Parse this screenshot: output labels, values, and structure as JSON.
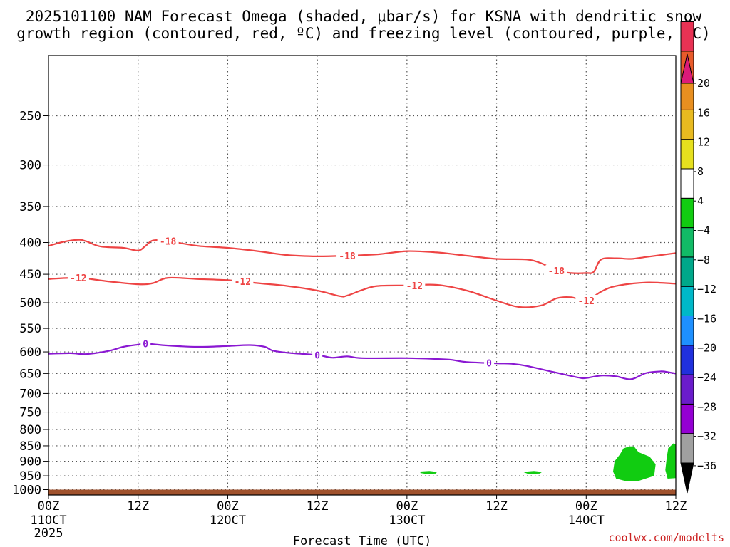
{
  "chart_data": {
    "type": "time-height",
    "title_lines": [
      "2025101100 NAM Forecast Omega (shaded, μbar/s) for KSNA with dendritic snow",
      "growth region (contoured, red, ºC) and freezing level (contoured, purple, ºC)"
    ],
    "xlabel": "Forecast Time (UTC)",
    "credit": "coolwx.com/modelts",
    "x_range_hours": [
      0,
      84
    ],
    "y_range_hpa": [
      1020,
      200
    ],
    "x_ticks": [
      {
        "hour": 0,
        "top": "00Z",
        "mid": "11OCT",
        "bottom": "2025"
      },
      {
        "hour": 12,
        "top": "12Z",
        "mid": "",
        "bottom": ""
      },
      {
        "hour": 24,
        "top": "00Z",
        "mid": "12OCT",
        "bottom": ""
      },
      {
        "hour": 36,
        "top": "12Z",
        "mid": "",
        "bottom": ""
      },
      {
        "hour": 48,
        "top": "00Z",
        "mid": "13OCT",
        "bottom": ""
      },
      {
        "hour": 60,
        "top": "12Z",
        "mid": "",
        "bottom": ""
      },
      {
        "hour": 72,
        "top": "00Z",
        "mid": "14OCT",
        "bottom": ""
      },
      {
        "hour": 84,
        "top": "12Z",
        "mid": "",
        "bottom": ""
      }
    ],
    "y_ticks": [
      {
        "p": 250,
        "label": "250"
      },
      {
        "p": 300,
        "label": "300"
      },
      {
        "p": 350,
        "label": "350"
      },
      {
        "p": 400,
        "label": "400"
      },
      {
        "p": 450,
        "label": "450"
      },
      {
        "p": 500,
        "label": "500"
      },
      {
        "p": 550,
        "label": "550"
      },
      {
        "p": 600,
        "label": "600"
      },
      {
        "p": 650,
        "label": "650"
      },
      {
        "p": 700,
        "label": "700"
      },
      {
        "p": 750,
        "label": "750"
      },
      {
        "p": 800,
        "label": "800"
      },
      {
        "p": 850,
        "label": "850"
      },
      {
        "p": 900,
        "label": "900"
      },
      {
        "p": 950,
        "label": "950"
      },
      {
        "p": 1000,
        "label": "1000"
      }
    ],
    "contours": [
      {
        "name": "minus18",
        "label": "-18",
        "color": "#ee4444",
        "points": [
          [
            0,
            405
          ],
          [
            2,
            399
          ],
          [
            4,
            396
          ],
          [
            5,
            398
          ],
          [
            7,
            406
          ],
          [
            10,
            408
          ],
          [
            12,
            412
          ],
          [
            13,
            405
          ],
          [
            14,
            397
          ],
          [
            16,
            398
          ],
          [
            20,
            405
          ],
          [
            24,
            408
          ],
          [
            28,
            413
          ],
          [
            32,
            419
          ],
          [
            36,
            421
          ],
          [
            40,
            420
          ],
          [
            44,
            418
          ],
          [
            48,
            413
          ],
          [
            52,
            415
          ],
          [
            56,
            420
          ],
          [
            60,
            425
          ],
          [
            64,
            426
          ],
          [
            66,
            432
          ],
          [
            68,
            444
          ],
          [
            70,
            448
          ],
          [
            72,
            448
          ],
          [
            73,
            446
          ],
          [
            74,
            426
          ],
          [
            76,
            424
          ],
          [
            78,
            425
          ],
          [
            80,
            422
          ],
          [
            82,
            419
          ],
          [
            84,
            416
          ]
        ],
        "label_positions": [
          [
            16,
            398
          ],
          [
            40,
            420
          ],
          [
            68,
            444
          ]
        ]
      },
      {
        "name": "minus12",
        "label": "-12",
        "color": "#ee4444",
        "points": [
          [
            0,
            458
          ],
          [
            4,
            456
          ],
          [
            8,
            462
          ],
          [
            12,
            467
          ],
          [
            14,
            465
          ],
          [
            16,
            456
          ],
          [
            20,
            458
          ],
          [
            24,
            460
          ],
          [
            28,
            465
          ],
          [
            32,
            470
          ],
          [
            36,
            478
          ],
          [
            39,
            488
          ],
          [
            40,
            487
          ],
          [
            42,
            477
          ],
          [
            44,
            470
          ],
          [
            48,
            469
          ],
          [
            52,
            468
          ],
          [
            56,
            478
          ],
          [
            60,
            496
          ],
          [
            63,
            508
          ],
          [
            66,
            505
          ],
          [
            68,
            492
          ],
          [
            70,
            490
          ],
          [
            72,
            496
          ],
          [
            74,
            480
          ],
          [
            76,
            470
          ],
          [
            80,
            464
          ],
          [
            84,
            466
          ]
        ],
        "label_positions": [
          [
            4,
            456
          ],
          [
            26,
            462
          ],
          [
            49,
            469
          ],
          [
            72,
            496
          ]
        ]
      },
      {
        "name": "zero",
        "label": "0",
        "color": "#8a18d2",
        "points": [
          [
            0,
            604
          ],
          [
            3,
            603
          ],
          [
            5,
            605
          ],
          [
            8,
            598
          ],
          [
            10,
            589
          ],
          [
            12,
            584
          ],
          [
            13,
            582
          ],
          [
            16,
            586
          ],
          [
            20,
            589
          ],
          [
            24,
            587
          ],
          [
            27,
            585
          ],
          [
            29,
            589
          ],
          [
            30,
            597
          ],
          [
            32,
            602
          ],
          [
            36,
            607
          ],
          [
            38,
            613
          ],
          [
            40,
            610
          ],
          [
            42,
            614
          ],
          [
            48,
            614
          ],
          [
            52,
            616
          ],
          [
            54,
            618
          ],
          [
            56,
            623
          ],
          [
            60,
            626
          ],
          [
            62,
            627
          ],
          [
            64,
            632
          ],
          [
            68,
            648
          ],
          [
            71,
            660
          ],
          [
            72,
            661
          ],
          [
            74,
            655
          ],
          [
            76,
            657
          ],
          [
            78,
            664
          ],
          [
            80,
            649
          ],
          [
            82,
            645
          ],
          [
            83,
            647
          ],
          [
            84,
            650
          ]
        ],
        "label_positions": [
          [
            13,
            582
          ],
          [
            36,
            607
          ],
          [
            59,
            625
          ]
        ]
      }
    ],
    "omega_patches": [
      {
        "color": "#11cc11",
        "points": [
          [
            49.8,
            935
          ],
          [
            51.0,
            933
          ],
          [
            52.0,
            936
          ],
          [
            51.9,
            942
          ],
          [
            50.5,
            943
          ],
          [
            49.8,
            940
          ]
        ]
      },
      {
        "color": "#11cc11",
        "points": [
          [
            63.5,
            936
          ],
          [
            65.0,
            933
          ],
          [
            66.1,
            936
          ],
          [
            65.8,
            942
          ],
          [
            64.2,
            943
          ]
        ]
      },
      {
        "color": "#11cc11",
        "points": [
          [
            77.0,
            858
          ],
          [
            77.8,
            852
          ],
          [
            78.4,
            852
          ],
          [
            79.0,
            870
          ],
          [
            80.5,
            885
          ],
          [
            81.3,
            910
          ],
          [
            81.1,
            950
          ],
          [
            79.0,
            968
          ],
          [
            77.5,
            970
          ],
          [
            76.0,
            960
          ],
          [
            75.6,
            935
          ],
          [
            75.8,
            900
          ],
          [
            76.5,
            878
          ]
        ]
      },
      {
        "color": "#11cc11",
        "points": [
          [
            83.0,
            857
          ],
          [
            83.7,
            842
          ],
          [
            84.0,
            846
          ],
          [
            84.0,
            958
          ],
          [
            82.9,
            960
          ],
          [
            82.6,
            930
          ],
          [
            82.8,
            885
          ]
        ]
      }
    ],
    "ground": {
      "color": "#a0522d",
      "from_p": 1000,
      "to_p": 1020
    },
    "colorbar": {
      "colors": [
        "#000000",
        "#a0a0a0",
        "#9400d3",
        "#6a1ccb",
        "#2030dd",
        "#1e90ff",
        "#00b8c8",
        "#00a88a",
        "#11bb66",
        "#11cc11",
        "#ffffff",
        "#e6e01e",
        "#e8ba20",
        "#e88f20",
        "#e85a2a",
        "#e83254",
        "#dc1b78"
      ],
      "labels": [
        "20",
        "16",
        "12",
        "8",
        "4",
        "−4",
        "−8",
        "−12",
        "−16",
        "−20",
        "−24",
        "−28",
        "−32",
        "−36"
      ]
    }
  }
}
